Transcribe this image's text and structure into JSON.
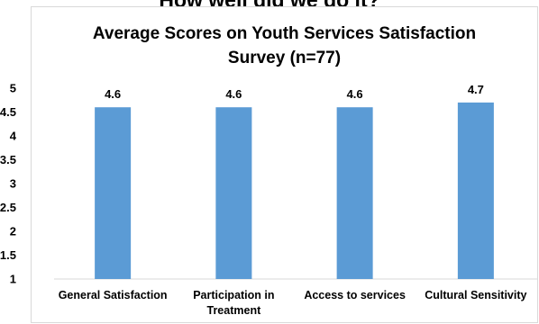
{
  "page": {
    "heading": "How well did we do it?"
  },
  "chart_data": {
    "type": "bar",
    "title_lines": [
      "Average Scores on Youth Services Satisfaction",
      "Survey (n=77)"
    ],
    "categories": [
      [
        "General Satisfaction"
      ],
      [
        "Participation in",
        "Treatment"
      ],
      [
        "Access to services"
      ],
      [
        "Cultural Sensitivity"
      ]
    ],
    "series": [
      {
        "values": [
          4.6,
          4.6,
          4.6,
          4.7
        ],
        "color": "#5b9bd5"
      }
    ],
    "data_labels": [
      "4.6",
      "4.6",
      "4.6",
      "4.7"
    ],
    "ylim": [
      1,
      5
    ],
    "yticks": [
      "1",
      "1.5",
      "2",
      "2.5",
      "3",
      "3.5",
      "4",
      "4.5",
      "5"
    ],
    "grid": false,
    "legend": "none"
  }
}
